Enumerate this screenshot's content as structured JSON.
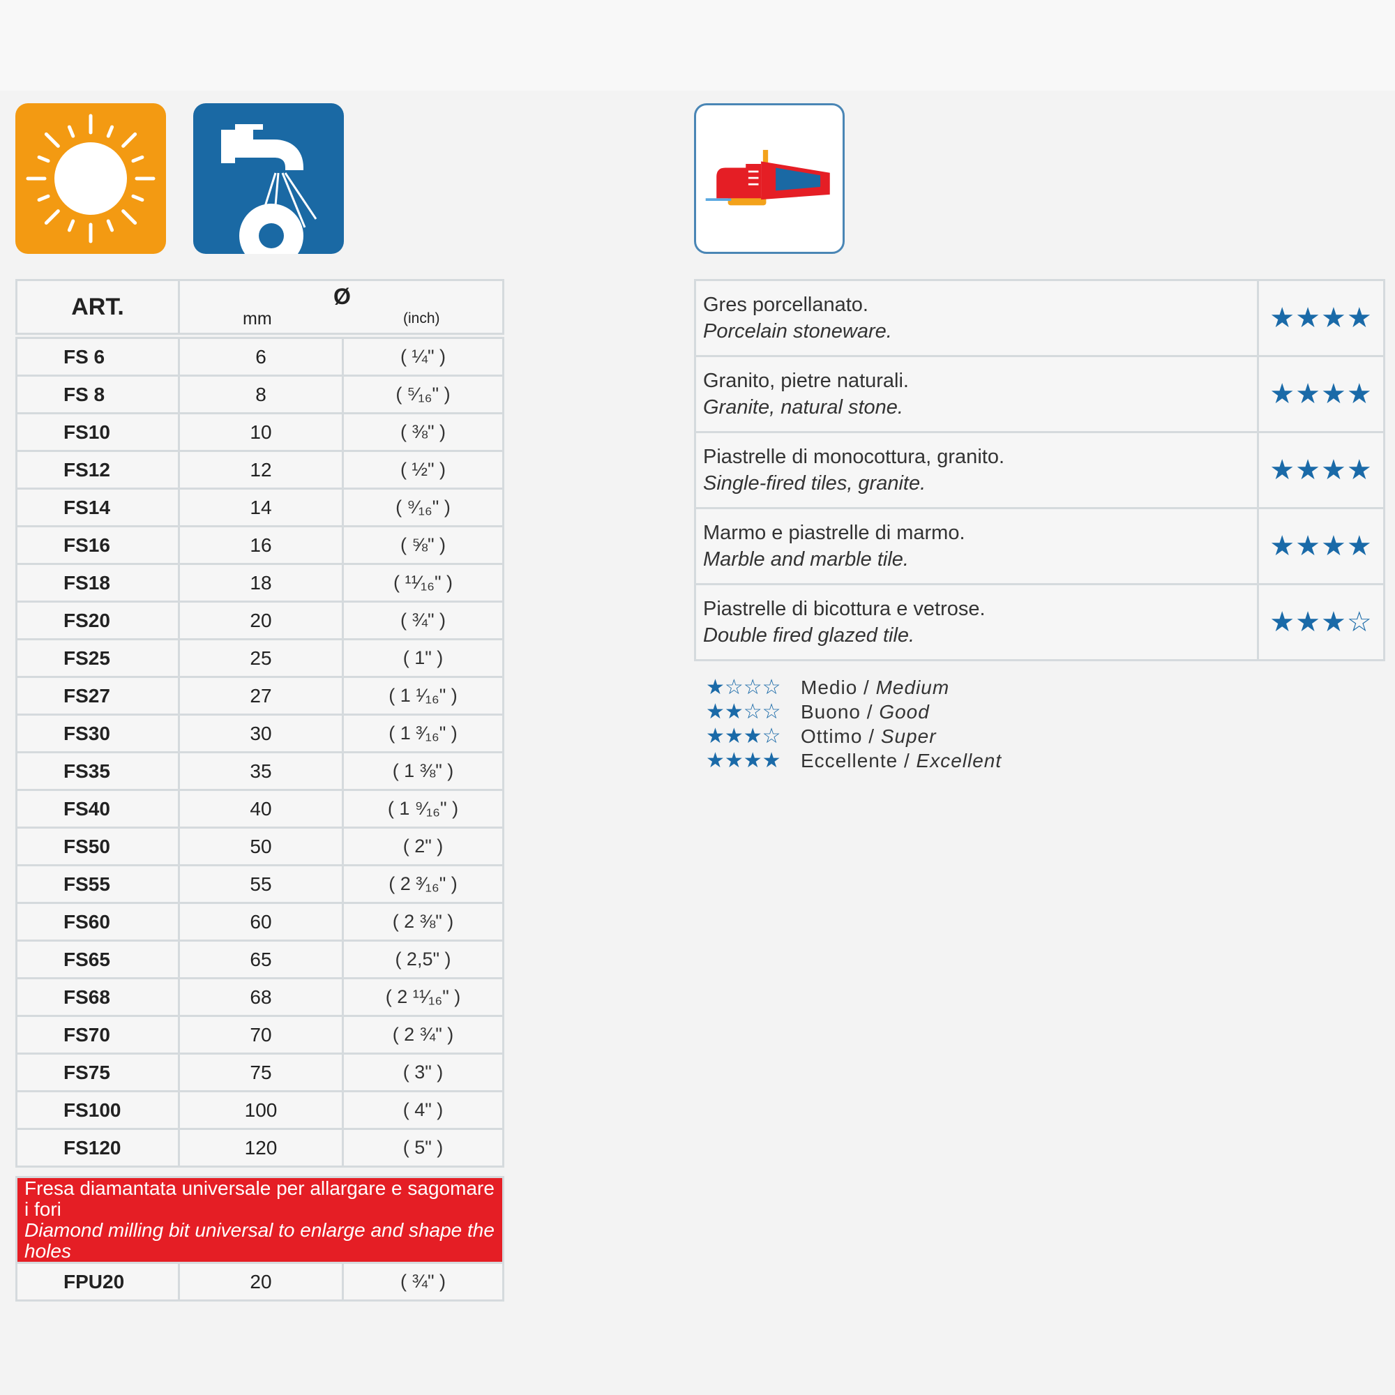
{
  "table": {
    "header": {
      "art": "ART.",
      "diameter_symbol": "Ø",
      "mm": "mm",
      "inch": "(inch)"
    },
    "rows": [
      {
        "code": "FS  6",
        "mm": "6",
        "inch": "(  ¼\"  )"
      },
      {
        "code": "FS  8",
        "mm": "8",
        "inch": "(  ⁵⁄₁₆\"  )"
      },
      {
        "code": "FS10",
        "mm": "10",
        "inch": "(  ⅜\"  )"
      },
      {
        "code": "FS12",
        "mm": "12",
        "inch": "(  ½\"  )"
      },
      {
        "code": "FS14",
        "mm": "14",
        "inch": "(  ⁹⁄₁₆\"  )"
      },
      {
        "code": "FS16",
        "mm": "16",
        "inch": "(  ⅝\"  )"
      },
      {
        "code": "FS18",
        "mm": "18",
        "inch": "(  ¹¹⁄₁₆\"  )"
      },
      {
        "code": "FS20",
        "mm": "20",
        "inch": "(  ¾\"  )"
      },
      {
        "code": "FS25",
        "mm": "25",
        "inch": "(  1\"  )"
      },
      {
        "code": "FS27",
        "mm": "27",
        "inch": "( 1 ¹⁄₁₆\" )"
      },
      {
        "code": "FS30",
        "mm": "30",
        "inch": "( 1 ³⁄₁₆\" )"
      },
      {
        "code": "FS35",
        "mm": "35",
        "inch": "( 1 ⅜\" )"
      },
      {
        "code": "FS40",
        "mm": "40",
        "inch": "( 1 ⁹⁄₁₆\" )"
      },
      {
        "code": "FS50",
        "mm": "50",
        "inch": "(  2\"  )"
      },
      {
        "code": "FS55",
        "mm": "55",
        "inch": "( 2 ³⁄₁₆\" )"
      },
      {
        "code": "FS60",
        "mm": "60",
        "inch": "( 2 ⅜\" )"
      },
      {
        "code": "FS65",
        "mm": "65",
        "inch": "(  2,5\"  )"
      },
      {
        "code": "FS68",
        "mm": "68",
        "inch": "( 2 ¹¹⁄₁₆\" )"
      },
      {
        "code": "FS70",
        "mm": "70",
        "inch": "( 2 ¾\" )"
      },
      {
        "code": "FS75",
        "mm": "75",
        "inch": "(  3\"  )"
      },
      {
        "code": "FS100",
        "mm": "100",
        "inch": "(  4\"  )"
      },
      {
        "code": "FS120",
        "mm": "120",
        "inch": "(  5\"  )"
      }
    ],
    "banner": {
      "it": "Fresa diamantata universale per allargare e sagomare i fori",
      "en": "Diamond milling bit universal to enlarge and shape the holes"
    },
    "extra_row": {
      "code": "FPU20",
      "mm": "20",
      "inch": "(  ¾\"  )"
    }
  },
  "materials": [
    {
      "it": "Gres porcellanato.",
      "en": "Porcelain stoneware.",
      "rating": 4
    },
    {
      "it": "Granito, pietre naturali.",
      "en": "Granite, natural stone.",
      "rating": 4
    },
    {
      "it": "Piastrelle di monocottura, granito.",
      "en": "Single-fired tiles, granite.",
      "rating": 4
    },
    {
      "it": "Marmo e piastrelle di marmo.",
      "en": "Marble and marble tile.",
      "rating": 4
    },
    {
      "it": "Piastrelle di bicottura e vetrose.",
      "en": "Double fired glazed tile.",
      "rating": 3
    }
  ],
  "legend": [
    {
      "rating": 1,
      "it": "Medio",
      "en": "Medium"
    },
    {
      "rating": 2,
      "it": "Buono",
      "en": "Good"
    },
    {
      "rating": 3,
      "it": "Ottimo",
      "en": "Super"
    },
    {
      "rating": 4,
      "it": "Eccellente",
      "en": "Excellent"
    }
  ],
  "icons": [
    "sun-icon",
    "water-tap-icon",
    "angle-grinder-icon"
  ],
  "colors": {
    "star": "#1a6aa8",
    "banner": "#e51e25",
    "sun_bg": "#f39a12",
    "tap_bg": "#1a69a4"
  }
}
